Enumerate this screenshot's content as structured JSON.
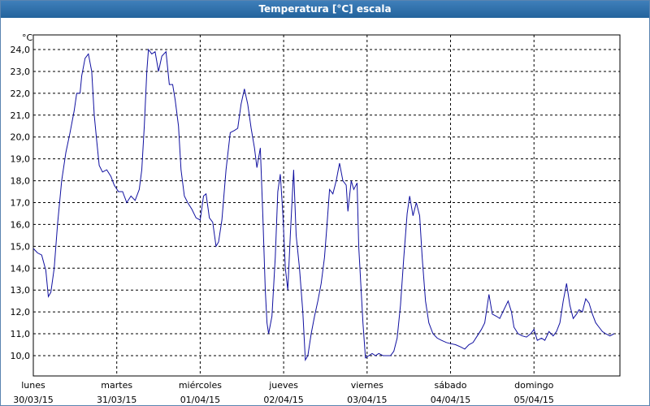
{
  "window_title": "Temperatura [°C] escala",
  "chart_data": {
    "type": "line",
    "ylabel": "°C",
    "x": [
      0,
      0.05,
      0.1,
      0.15,
      0.18,
      0.21,
      0.25,
      0.29,
      0.34,
      0.39,
      0.44,
      0.49,
      0.52,
      0.56,
      0.58,
      0.62,
      0.66,
      0.7,
      0.73,
      0.76,
      0.79,
      0.83,
      0.88,
      0.93,
      0.97,
      1.02,
      1.07,
      1.12,
      1.17,
      1.22,
      1.27,
      1.3,
      1.33,
      1.36,
      1.38,
      1.42,
      1.46,
      1.5,
      1.54,
      1.59,
      1.63,
      1.67,
      1.7,
      1.74,
      1.77,
      1.81,
      1.85,
      1.9,
      1.95,
      2.0,
      2.04,
      2.07,
      2.11,
      2.15,
      2.19,
      2.22,
      2.26,
      2.31,
      2.36,
      2.41,
      2.45,
      2.49,
      2.53,
      2.57,
      2.61,
      2.65,
      2.68,
      2.72,
      2.75,
      2.78,
      2.8,
      2.82,
      2.86,
      2.9,
      2.93,
      2.96,
      2.99,
      3.02,
      3.05,
      3.08,
      3.12,
      3.15,
      3.19,
      3.23,
      3.26,
      3.29,
      3.33,
      3.37,
      3.41,
      3.45,
      3.49,
      3.52,
      3.55,
      3.59,
      3.63,
      3.67,
      3.71,
      3.75,
      3.77,
      3.81,
      3.84,
      3.88,
      3.9,
      3.95,
      3.98,
      4.02,
      4.06,
      4.1,
      4.14,
      4.19,
      4.24,
      4.28,
      4.32,
      4.36,
      4.4,
      4.44,
      4.48,
      4.51,
      4.55,
      4.59,
      4.63,
      4.66,
      4.7,
      4.74,
      4.79,
      4.84,
      4.89,
      4.95,
      5.0,
      5.06,
      5.12,
      5.17,
      5.22,
      5.27,
      5.32,
      5.37,
      5.41,
      5.46,
      5.5,
      5.55,
      5.59,
      5.64,
      5.69,
      5.73,
      5.76,
      5.81,
      5.86,
      5.91,
      5.96,
      6.0,
      6.04,
      6.09,
      6.13,
      6.18,
      6.23,
      6.27,
      6.31,
      6.35,
      6.39,
      6.43,
      6.47,
      6.51,
      6.54,
      6.58,
      6.62,
      6.66,
      6.7,
      6.74,
      6.78,
      6.82,
      6.86,
      6.91,
      6.96
    ],
    "series": [
      {
        "color": "#1010a0",
        "values": [
          14.9,
          14.7,
          14.6,
          13.9,
          12.7,
          12.9,
          14.0,
          16.0,
          18.0,
          19.3,
          20.2,
          21.2,
          22.0,
          22.0,
          22.8,
          23.6,
          23.8,
          23.0,
          21.0,
          19.8,
          18.7,
          18.4,
          18.5,
          18.2,
          17.8,
          17.5,
          17.5,
          17.0,
          17.3,
          17.1,
          17.6,
          18.5,
          20.5,
          23.0,
          24.0,
          23.8,
          23.9,
          23.0,
          23.7,
          23.9,
          22.4,
          22.4,
          21.7,
          20.5,
          18.5,
          17.3,
          17.0,
          16.7,
          16.3,
          16.2,
          17.3,
          17.4,
          16.3,
          16.1,
          15.0,
          15.2,
          16.2,
          18.5,
          20.2,
          20.3,
          20.4,
          21.5,
          22.2,
          21.5,
          20.4,
          19.5,
          18.6,
          19.5,
          16.5,
          13.0,
          11.5,
          11.0,
          11.8,
          14.5,
          17.5,
          18.3,
          16.5,
          14.0,
          13.0,
          15.5,
          18.5,
          15.5,
          14.0,
          12.0,
          9.8,
          10.0,
          11.0,
          11.8,
          12.5,
          13.3,
          14.5,
          16.0,
          17.6,
          17.4,
          18.0,
          18.8,
          18.0,
          17.8,
          16.6,
          18.0,
          17.6,
          17.9,
          15.0,
          11.5,
          9.9,
          10.0,
          10.1,
          10.0,
          10.1,
          10.0,
          10.0,
          10.0,
          10.2,
          10.8,
          12.3,
          14.5,
          16.5,
          17.3,
          16.4,
          17.0,
          16.4,
          14.5,
          12.5,
          11.5,
          11.0,
          10.8,
          10.7,
          10.6,
          10.55,
          10.5,
          10.4,
          10.3,
          10.5,
          10.6,
          10.9,
          11.2,
          11.5,
          12.8,
          11.9,
          11.8,
          11.7,
          12.1,
          12.5,
          12.0,
          11.3,
          11.0,
          10.9,
          10.85,
          11.0,
          11.2,
          10.7,
          10.8,
          10.7,
          11.1,
          10.9,
          11.1,
          11.5,
          12.5,
          13.3,
          12.3,
          11.7,
          11.9,
          12.1,
          12.0,
          12.6,
          12.4,
          11.9,
          11.5,
          11.3,
          11.1,
          11.0,
          10.9,
          11.0
        ]
      }
    ],
    "xlim": [
      0,
      7.03
    ],
    "xticks": [
      {
        "value": 0,
        "label": "lunes"
      },
      {
        "value": 1,
        "label": "martes"
      },
      {
        "value": 2,
        "label": "miércoles"
      },
      {
        "value": 3,
        "label": "jueves"
      },
      {
        "value": 4,
        "label": "viernes"
      },
      {
        "value": 5,
        "label": "sábado"
      },
      {
        "value": 6,
        "label": "domingo"
      }
    ],
    "xtick_dates": [
      "30/03/15",
      "31/03/15",
      "01/04/15",
      "02/04/15",
      "03/04/15",
      "04/04/15",
      "05/04/15"
    ],
    "ylim": [
      9.07,
      24.67
    ],
    "yticks": [
      {
        "value": 10,
        "label": "10,0"
      },
      {
        "value": 11,
        "label": "11,0"
      },
      {
        "value": 12,
        "label": "12,0"
      },
      {
        "value": 13,
        "label": "13,0"
      },
      {
        "value": 14,
        "label": "14,0"
      },
      {
        "value": 15,
        "label": "15,0"
      },
      {
        "value": 16,
        "label": "16,0"
      },
      {
        "value": 17,
        "label": "17,0"
      },
      {
        "value": 18,
        "label": "18,0"
      },
      {
        "value": 19,
        "label": "19,0"
      },
      {
        "value": 20,
        "label": "20,0"
      },
      {
        "value": 21,
        "label": "21,0"
      },
      {
        "value": 22,
        "label": "22,0"
      },
      {
        "value": 23,
        "label": "23,0"
      },
      {
        "value": 24,
        "label": "24,0"
      }
    ],
    "grid": true
  }
}
